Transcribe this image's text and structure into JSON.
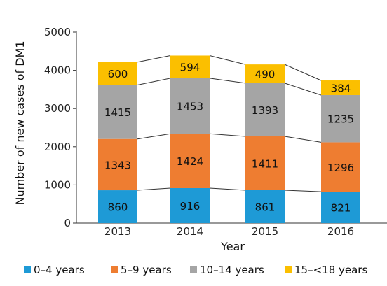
{
  "chart_data": {
    "type": "bar",
    "stacked": true,
    "categories": [
      "2013",
      "2014",
      "2015",
      "2016"
    ],
    "series": [
      {
        "name": "0–4 years",
        "color": "#1e9ad6",
        "values": [
          860,
          916,
          861,
          821
        ]
      },
      {
        "name": "5–9 years",
        "color": "#ee7d31",
        "values": [
          1343,
          1424,
          1411,
          1296
        ]
      },
      {
        "name": "10–14 years",
        "color": "#a5a5a5",
        "values": [
          1415,
          1453,
          1393,
          1235
        ]
      },
      {
        "name": "15–<18 years",
        "color": "#fbbf00",
        "values": [
          600,
          594,
          490,
          384
        ]
      }
    ],
    "title": "",
    "xlabel": "Year",
    "ylabel": "Number of new cases of DM1",
    "ylim": [
      0,
      5000
    ],
    "yticks": [
      "0",
      "1000",
      "2000",
      "3000",
      "4000",
      "5000"
    ],
    "grid": false,
    "connector_lines": true,
    "legend_position": "bottom"
  }
}
